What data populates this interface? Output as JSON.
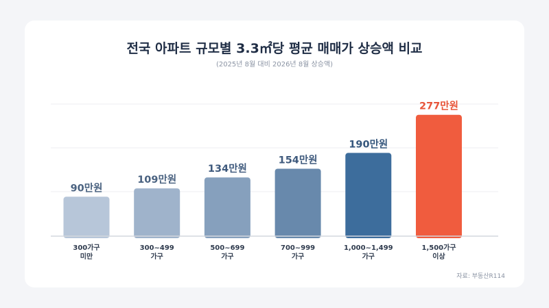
{
  "title": "전국 아파트 규모별 3.3㎡당 평균 매매가 상승액 비교",
  "subtitle": "(2025년 8월 대비 2026년 8월 상승액)",
  "source": "자료: 부동산R114",
  "chart_data": {
    "type": "bar",
    "title": "전국 아파트 규모별 3.3㎡당 평균 매매가 상승액 비교",
    "subtitle": "(2025년 8월 대비 2026년 8월 상승액)",
    "categories": [
      [
        "300가구",
        "미만"
      ],
      [
        "300~499",
        "가구"
      ],
      [
        "500~699",
        "가구"
      ],
      [
        "700~999",
        "가구"
      ],
      [
        "1,000~1,499",
        "가구"
      ],
      [
        "1,500가구",
        "이상"
      ]
    ],
    "values": [
      90,
      109,
      134,
      154,
      190,
      277
    ],
    "value_labels": [
      "90만원",
      "109만원",
      "134만원",
      "154만원",
      "190만원",
      "277만원"
    ],
    "unit": "만원",
    "ylim": [
      0,
      300
    ],
    "grid": true,
    "bar_colors": [
      "#b7c6d9",
      "#9fb3cb",
      "#86a0bd",
      "#6889ac",
      "#3d6d9c",
      "#f05c3e"
    ],
    "label_colors": [
      "#4a6280",
      "#4a6280",
      "#3f5a7d",
      "#3f5a7d",
      "#36577d",
      "#e8553a"
    ]
  }
}
